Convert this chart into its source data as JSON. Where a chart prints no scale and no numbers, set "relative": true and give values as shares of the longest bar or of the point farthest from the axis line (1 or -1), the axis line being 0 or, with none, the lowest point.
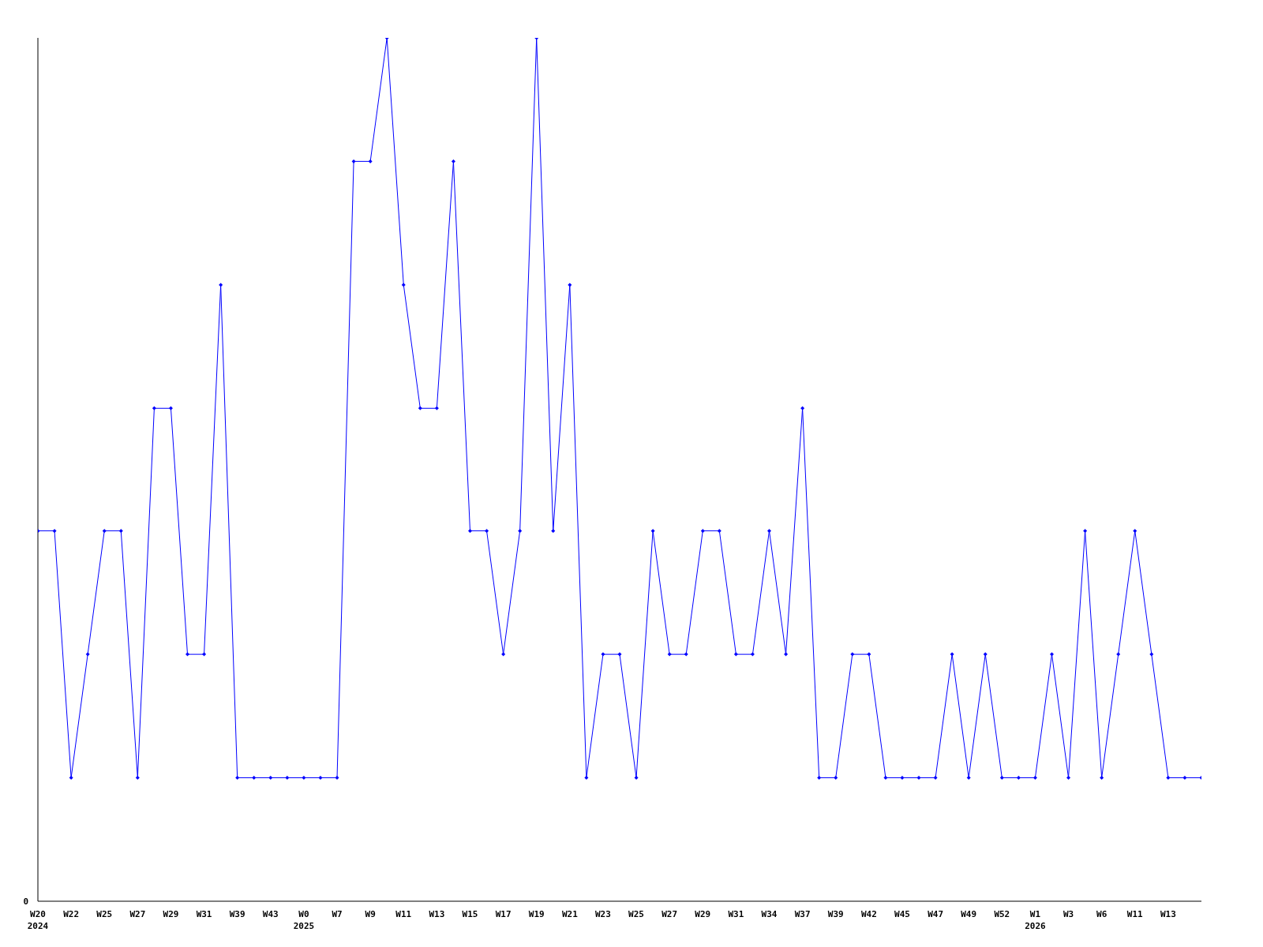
{
  "chart_data": {
    "type": "line",
    "relative": true,
    "annotations": [
      "0"
    ],
    "marker": "diamond",
    "line_style": "solid",
    "grid": false,
    "legend": false,
    "categories": [
      "W20\n2024",
      null,
      "W22",
      null,
      "W25",
      null,
      "W27",
      null,
      "W29",
      null,
      "W31",
      null,
      "W39",
      null,
      "W43",
      null,
      "W0\n2025",
      null,
      "W7",
      null,
      "W9",
      null,
      "W11",
      null,
      "W13",
      null,
      "W15",
      null,
      "W17",
      null,
      "W19",
      null,
      "W21",
      null,
      "W23",
      null,
      "W25",
      null,
      "W27",
      null,
      "W29",
      null,
      "W31",
      null,
      "W34",
      null,
      "W37",
      null,
      "W39",
      null,
      "W42",
      null,
      "W45",
      null,
      "W47",
      null,
      "W49",
      null,
      "W52",
      null,
      "W1\n2026",
      null,
      "W3",
      null,
      "W6",
      null,
      "W11",
      null,
      "W13",
      null,
      null
    ],
    "series": [
      {
        "color": "#0000ff",
        "values": [
          0.429,
          0.429,
          0.143,
          0.286,
          0.429,
          0.429,
          0.143,
          0.571,
          0.571,
          0.286,
          0.286,
          0.714,
          0.143,
          0.143,
          0.143,
          0.143,
          0.143,
          0.143,
          0.143,
          0.857,
          0.857,
          1,
          0.714,
          0.571,
          0.571,
          0.857,
          0.429,
          0.429,
          0.286,
          0.429,
          1,
          0.429,
          0.714,
          0.143,
          0.286,
          0.286,
          0.143,
          0.429,
          0.286,
          0.286,
          0.429,
          0.429,
          0.286,
          0.286,
          0.429,
          0.286,
          0.571,
          0.143,
          0.143,
          0.286,
          0.286,
          0.143,
          0.143,
          0.143,
          0.143,
          0.286,
          0.143,
          0.286,
          0.143,
          0.143,
          0.143,
          0.286,
          0.143,
          0.429,
          0.143,
          0.286,
          0.429,
          0.286,
          0.143,
          0.143,
          0.143
        ]
      }
    ]
  }
}
